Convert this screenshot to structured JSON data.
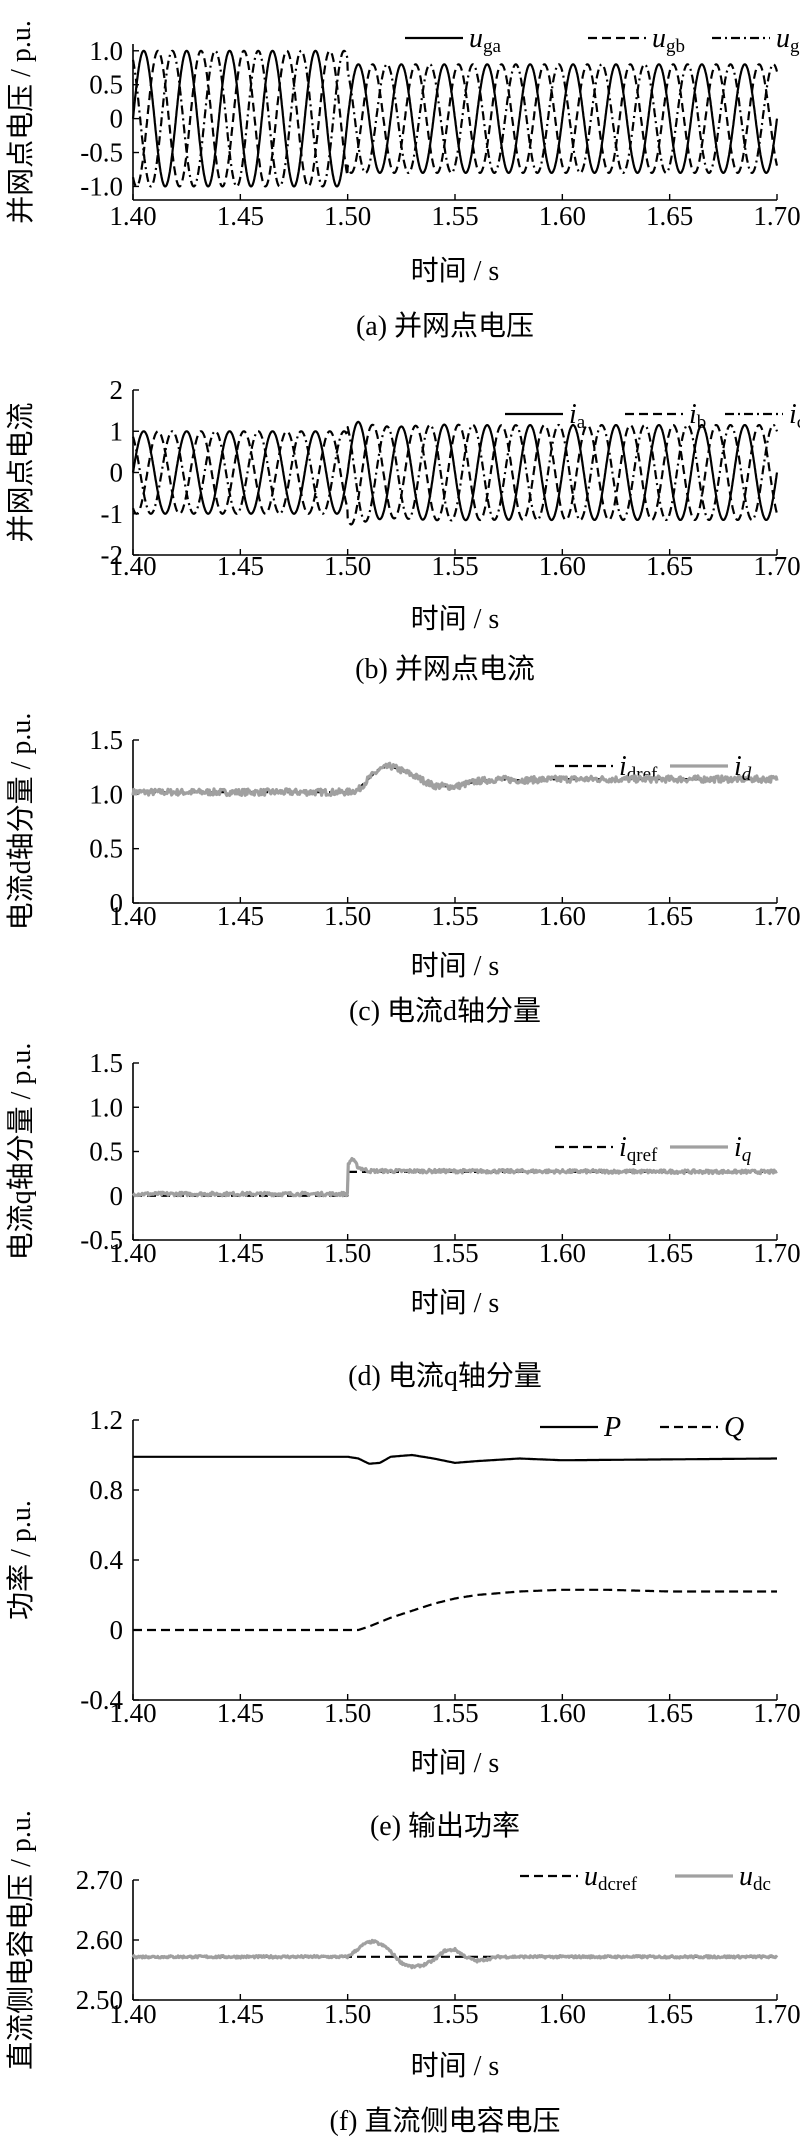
{
  "chart_data": [
    {
      "type": "line",
      "caption": "(a)  并网点电压",
      "xlabel": "时间 / s",
      "ylabel": "并网点电压 / p.u.",
      "xlim": [
        1.4,
        1.7
      ],
      "ylim": [
        -1.2,
        1.1
      ],
      "xticks": [
        "1.40",
        "1.45",
        "1.50",
        "1.55",
        "1.60",
        "1.65",
        "1.70"
      ],
      "yticks": [
        "1.0",
        "0.5",
        "0",
        "-0.5",
        "-1.0"
      ],
      "ytick_values": [
        1.0,
        0.5,
        0,
        -0.5,
        -1.0
      ],
      "waveform": {
        "frequency_hz": 50,
        "amplitude_before": 1.0,
        "amplitude_after": 0.8,
        "step_time": 1.5
      },
      "legend_position": "top-right",
      "series": [
        {
          "name": "u",
          "sub": "ga",
          "style": "solid",
          "phase_deg": 0
        },
        {
          "name": "u",
          "sub": "gb",
          "style": "dashed",
          "phase_deg": -120
        },
        {
          "name": "u",
          "sub": "gc",
          "style": "dashdot",
          "phase_deg": 120
        }
      ]
    },
    {
      "type": "line",
      "caption": "(b)  并网点电流",
      "xlabel": "时间 / s",
      "ylabel": "并网点电流",
      "xlim": [
        1.4,
        1.7
      ],
      "ylim": [
        -2,
        2
      ],
      "xticks": [
        "1.40",
        "1.45",
        "1.50",
        "1.55",
        "1.60",
        "1.65",
        "1.70"
      ],
      "yticks": [
        "2",
        "1",
        "0",
        "-1",
        "-2"
      ],
      "ytick_values": [
        2,
        1,
        0,
        -1,
        -2
      ],
      "waveform": {
        "frequency_hz": 50,
        "amplitude_before": 1.0,
        "amplitude_after": 1.15,
        "step_time": 1.5,
        "overshoot": 0.12
      },
      "legend_position": "top-right",
      "series": [
        {
          "name": "i",
          "sub": "a",
          "style": "solid",
          "phase_deg": 0
        },
        {
          "name": "i",
          "sub": "b",
          "style": "dashed",
          "phase_deg": -120
        },
        {
          "name": "i",
          "sub": "c",
          "style": "dashdot",
          "phase_deg": 120
        }
      ]
    },
    {
      "type": "line",
      "caption": "(c)  电流d轴分量",
      "xlabel": "时间 / s",
      "ylabel": "电流d轴分量 / p.u.",
      "xlim": [
        1.4,
        1.7
      ],
      "ylim": [
        0,
        1.5
      ],
      "xticks": [
        "1.40",
        "1.45",
        "1.50",
        "1.55",
        "1.60",
        "1.65",
        "1.70"
      ],
      "yticks": [
        "1.5",
        "1.0",
        "0.5",
        "0"
      ],
      "ytick_values": [
        1.5,
        1.0,
        0.5,
        0
      ],
      "legend_position": "top-right",
      "series": [
        {
          "name": "i",
          "sub": "dref",
          "style": "dashed",
          "x": [
            1.4,
            1.5,
            1.505,
            1.51,
            1.515,
            1.52,
            1.53,
            1.54,
            1.55,
            1.56,
            1.57,
            1.58,
            1.6,
            1.65,
            1.7
          ],
          "y": [
            1.02,
            1.02,
            1.05,
            1.15,
            1.24,
            1.26,
            1.18,
            1.08,
            1.07,
            1.12,
            1.14,
            1.13,
            1.14,
            1.14,
            1.14
          ]
        },
        {
          "name": "i",
          "sub": "d",
          "style": "gray",
          "x": [
            1.4,
            1.5,
            1.505,
            1.51,
            1.515,
            1.52,
            1.53,
            1.54,
            1.55,
            1.56,
            1.57,
            1.58,
            1.6,
            1.65,
            1.7
          ],
          "y": [
            1.02,
            1.02,
            1.04,
            1.15,
            1.23,
            1.26,
            1.18,
            1.08,
            1.07,
            1.12,
            1.14,
            1.13,
            1.14,
            1.14,
            1.14
          ],
          "noise": 0.03
        }
      ]
    },
    {
      "type": "line",
      "caption": "(d)  电流q轴分量",
      "xlabel": "时间 / s",
      "ylabel": "电流q轴分量 / p.u.",
      "xlim": [
        1.4,
        1.7
      ],
      "ylim": [
        -0.5,
        1.5
      ],
      "xticks": [
        "1.40",
        "1.45",
        "1.50",
        "1.55",
        "1.60",
        "1.65",
        "1.70"
      ],
      "yticks": [
        "1.5",
        "1.0",
        "0.5",
        "0",
        "-0.5"
      ],
      "ytick_values": [
        1.5,
        1.0,
        0.5,
        0,
        -0.5
      ],
      "legend_position": "top-right",
      "series": [
        {
          "name": "i",
          "sub": "qref",
          "style": "dashed",
          "x": [
            1.4,
            1.5,
            1.5001,
            1.7
          ],
          "y": [
            0.0,
            0.0,
            0.27,
            0.27
          ]
        },
        {
          "name": "i",
          "sub": "q",
          "style": "gray",
          "x": [
            1.4,
            1.5,
            1.5001,
            1.502,
            1.505,
            1.51,
            1.7
          ],
          "y": [
            0.02,
            0.02,
            0.35,
            0.42,
            0.32,
            0.28,
            0.27
          ],
          "noise": 0.02
        }
      ]
    },
    {
      "type": "line",
      "caption": "(e)  输出功率",
      "xlabel": "时间 / s",
      "ylabel": "功率 / p.u.",
      "xlim": [
        1.4,
        1.7
      ],
      "ylim": [
        -0.4,
        1.2
      ],
      "xticks": [
        "1.40",
        "1.45",
        "1.50",
        "1.55",
        "1.60",
        "1.65",
        "1.70"
      ],
      "yticks": [
        "1.2",
        "0.8",
        "0.4",
        "0",
        "-0.4"
      ],
      "ytick_values": [
        1.2,
        0.8,
        0.4,
        0,
        -0.4
      ],
      "legend_position": "top-right",
      "series": [
        {
          "name": "P",
          "style": "solid",
          "x": [
            1.4,
            1.5,
            1.505,
            1.51,
            1.515,
            1.52,
            1.53,
            1.54,
            1.55,
            1.56,
            1.58,
            1.6,
            1.7
          ],
          "y": [
            0.99,
            0.99,
            0.98,
            0.95,
            0.955,
            0.99,
            1.0,
            0.98,
            0.955,
            0.965,
            0.98,
            0.97,
            0.98
          ]
        },
        {
          "name": "Q",
          "style": "dashed",
          "x": [
            1.4,
            1.5,
            1.505,
            1.51,
            1.52,
            1.53,
            1.54,
            1.55,
            1.56,
            1.58,
            1.6,
            1.62,
            1.65,
            1.7
          ],
          "y": [
            0.0,
            0.0,
            0.0,
            0.02,
            0.07,
            0.11,
            0.15,
            0.18,
            0.2,
            0.22,
            0.23,
            0.23,
            0.22,
            0.22
          ]
        }
      ]
    },
    {
      "type": "line",
      "caption": "(f)  直流侧电容电压",
      "xlabel": "时间 / s",
      "ylabel": "直流侧电容电压 / p.u.",
      "xlim": [
        1.4,
        1.7
      ],
      "ylim": [
        2.5,
        2.7
      ],
      "xticks": [
        "1.40",
        "1.45",
        "1.50",
        "1.55",
        "1.60",
        "1.65",
        "1.70"
      ],
      "yticks": [
        "2.70",
        "2.60",
        "2.50"
      ],
      "ytick_values": [
        2.7,
        2.6,
        2.5
      ],
      "legend_position": "top-right",
      "series": [
        {
          "name": "u",
          "sub": "dcref",
          "style": "dashed",
          "x": [
            1.4,
            1.7
          ],
          "y": [
            2.572,
            2.572
          ]
        },
        {
          "name": "u",
          "sub": "dc",
          "style": "gray",
          "x": [
            1.4,
            1.5,
            1.503,
            1.508,
            1.512,
            1.518,
            1.525,
            1.53,
            1.535,
            1.54,
            1.545,
            1.55,
            1.555,
            1.56,
            1.565,
            1.57,
            1.7
          ],
          "y": [
            2.572,
            2.572,
            2.58,
            2.594,
            2.598,
            2.588,
            2.562,
            2.555,
            2.558,
            2.566,
            2.582,
            2.584,
            2.572,
            2.565,
            2.568,
            2.572,
            2.572
          ],
          "noise": 0.002
        }
      ]
    }
  ]
}
